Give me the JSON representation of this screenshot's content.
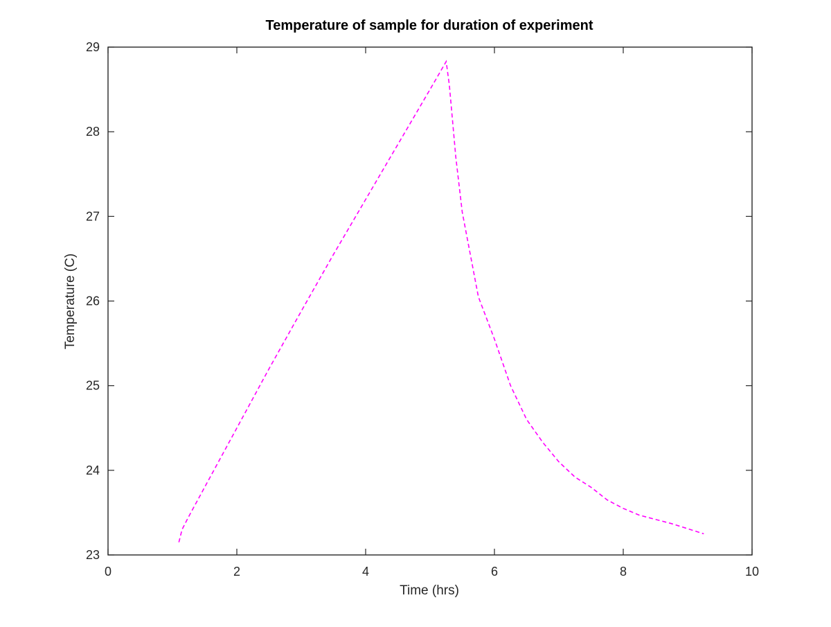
{
  "chart_data": {
    "type": "line",
    "title": "Temperature of sample for duration of experiment",
    "xlabel": "Time (hrs)",
    "ylabel": "Temperature (C)",
    "xlim": [
      0,
      10
    ],
    "ylim": [
      23,
      29
    ],
    "xticks": [
      0,
      2,
      4,
      6,
      8,
      10
    ],
    "yticks": [
      23,
      24,
      25,
      26,
      27,
      28,
      29
    ],
    "xtick_labels": [
      "0",
      "2",
      "4",
      "6",
      "8",
      "10"
    ],
    "ytick_labels": [
      "23",
      "24",
      "25",
      "26",
      "27",
      "28",
      "29"
    ],
    "grid": false,
    "legend": null,
    "series": [
      {
        "name": "Temperature",
        "color": "#ff00ff",
        "line_style": "dashed",
        "x": [
          1.1,
          1.15,
          1.25,
          1.5,
          2.0,
          2.5,
          3.0,
          3.5,
          4.0,
          4.5,
          5.0,
          5.25,
          5.3,
          5.4,
          5.5,
          5.75,
          6.0,
          6.25,
          6.5,
          6.75,
          7.0,
          7.25,
          7.5,
          7.75,
          8.0,
          8.25,
          8.5,
          8.75,
          9.0,
          9.25
        ],
        "y": [
          23.15,
          23.3,
          23.45,
          23.8,
          24.5,
          25.2,
          25.88,
          26.55,
          27.2,
          27.85,
          28.5,
          28.83,
          28.55,
          27.7,
          27.05,
          26.05,
          25.55,
          25.0,
          24.6,
          24.33,
          24.1,
          23.92,
          23.8,
          23.65,
          23.55,
          23.47,
          23.42,
          23.37,
          23.31,
          23.25
        ]
      }
    ]
  }
}
